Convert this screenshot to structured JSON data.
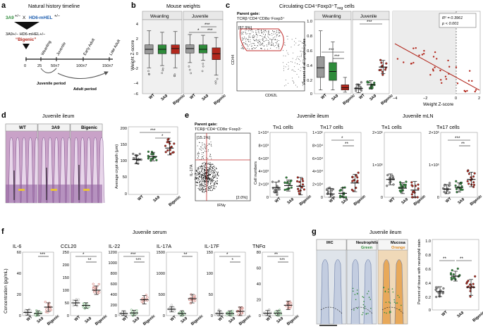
{
  "colors": {
    "wt": "#9a9a9a",
    "a39": "#2e8b3a",
    "big": "#b2281d",
    "he_bg": "#c9a2c8",
    "ihc_bg": "#dfe4ea"
  },
  "groups": [
    "WT",
    "3A9",
    "Bigenic"
  ],
  "panel_a": {
    "letter": "a",
    "title": "Natural history timeline",
    "cross_left": "3A9",
    "cross_left_sup": "+/−",
    "cross_x": "X",
    "cross_right": "HD6-mHEL",
    "cross_right_sup": "+/−",
    "offspring": "3A9+/− HD6-mHEL+/−",
    "bigenic_label": "“Bigenic”",
    "ticks": [
      "0",
      "25",
      "50±7",
      "100±7",
      "150±7"
    ],
    "stages": [
      "Weanling",
      "Juvenile",
      "Early Adult",
      "Late Adult"
    ],
    "juvenile_period": "Juvenile period",
    "adult_period": "Adult period"
  },
  "panel_b": {
    "letter": "b",
    "title": "Mouse weights",
    "ylabel": "Weight Z-score",
    "yticks": [
      "4",
      "2",
      "0",
      "−2",
      "−4",
      "−6"
    ],
    "subtitles": [
      "Weanling",
      "Juvenile"
    ],
    "sig": [
      "***",
      "*",
      "***"
    ]
  },
  "panel_c": {
    "letter": "c",
    "title": "Circulating CD4⁺Foxp3⁺T",
    "title_sub": "reg",
    "title_end": " cells",
    "gate_title": "Parent gate:",
    "gate": "TCRβ⁺CD4⁺CD8α⁻Foxp3⁺",
    "gate_pct": "[87.9%]",
    "x_axis": "CD62L",
    "y_axis": "CD44",
    "ylabel": "Percent of all lymphocytes",
    "yticks": [
      "1.0",
      "0.8",
      "0.6",
      "0.4",
      "0.2",
      "0"
    ],
    "subtitles": [
      "Weanling",
      "Juvenile"
    ],
    "sig": [
      "***",
      "***",
      "***"
    ],
    "r2": "R² = 0.3961",
    "p": "p < 0.001",
    "scatter_xlabel": "Weight Z-score",
    "scatter_xticks": [
      "−4",
      "−2",
      "0",
      "2"
    ]
  },
  "panel_d": {
    "letter": "d",
    "title": "Juvenile ileum",
    "ylabel": "Average crypt depth (μm)",
    "yticks": [
      "200",
      "150",
      "100",
      "50",
      "0"
    ],
    "sig": [
      "***",
      "*"
    ]
  },
  "panel_e": {
    "letter": "e",
    "gate_title": "Parent gate:",
    "gate": "TCRβ⁺CD4⁺CD8α⁻Foxp3⁻",
    "q1": "[15.1%]",
    "q2": "[2.0%]",
    "x_axis": "IFNγ",
    "y_axis": "IL-17A",
    "ileum_title": "Juvenile ileum",
    "mln_title": "Juvenile mLN",
    "th1": "Tʜ1 cells",
    "th17": "Tʜ17 cells",
    "ylabel": "Cell numbers",
    "th1_ileum_ticks": [
      "1×10⁴",
      "8×10³",
      "6×10³",
      "4×10³",
      "2×10³",
      "0"
    ],
    "th17_ileum_ticks": [
      "1×10⁵",
      "8×10⁴",
      "6×10⁴",
      "4×10⁴",
      "2×10⁴",
      "0"
    ],
    "mln_ticks": [
      "2×10⁵",
      "1×10⁵",
      "0"
    ],
    "sig_ileum": [
      "*",
      "**"
    ],
    "sig_mln": [
      "***",
      "**"
    ]
  },
  "panel_f": {
    "letter": "f",
    "title": "Juvenile serum",
    "ylabel": "Concentration (pg/mL)",
    "cytokines": [
      {
        "name": "IL-6",
        "ticks": [
          "60",
          "40",
          "20",
          "0"
        ],
        "sig": [
          "***"
        ]
      },
      {
        "name": "CCL20",
        "ticks": [
          "250",
          "200",
          "150",
          "100",
          "50",
          "0"
        ],
        "sig": [
          "*",
          "**"
        ]
      },
      {
        "name": "IL-22",
        "ticks": [
          "1200",
          "1000",
          "800",
          "600",
          "400",
          "200",
          "0"
        ],
        "sig": [
          "***",
          "***"
        ]
      },
      {
        "name": "IL-17A",
        "ticks": [
          "1500",
          "1000",
          "500",
          "0"
        ],
        "sig": [
          "**"
        ]
      },
      {
        "name": "IL-17F",
        "ticks": [
          "150",
          "100",
          "50",
          "0"
        ],
        "sig": [
          "*",
          "*"
        ]
      },
      {
        "name": "TNFα",
        "ticks": [
          "80",
          "60",
          "40",
          "20",
          "0"
        ],
        "sig": [
          "**",
          "***"
        ]
      }
    ]
  },
  "panel_g": {
    "letter": "g",
    "title": "Juvenile ileum",
    "tiles": [
      "IHC",
      "Neutrophils",
      "Mucosa"
    ],
    "tile_sub": [
      "",
      "Green",
      "Orange"
    ],
    "ylabel": "Percent of tissue with neutrophil stain",
    "yticks": [
      "1.0",
      "0.8",
      "0.6",
      "0.4",
      "0.2",
      "0"
    ],
    "sig": [
      "**",
      "**"
    ]
  },
  "chart_data": [
    {
      "id": "b_weanling",
      "type": "box",
      "title": "Mouse weights — Weanling",
      "categories": [
        "WT",
        "3A9",
        "Bigenic"
      ],
      "median": [
        0.0,
        0.0,
        0.1
      ],
      "q1": [
        -0.6,
        -0.6,
        -0.6
      ],
      "q3": [
        0.6,
        0.6,
        0.6
      ],
      "whisker_low": [
        -2.5,
        -2.2,
        -2.5
      ],
      "whisker_high": [
        2.5,
        2.3,
        2.4
      ],
      "ylabel": "Weight Z-score",
      "ylim": [
        -6,
        4
      ]
    },
    {
      "id": "b_juvenile",
      "type": "box",
      "title": "Mouse weights — Juvenile",
      "categories": [
        "WT",
        "3A9",
        "Bigenic"
      ],
      "median": [
        0.1,
        0.0,
        -0.6
      ],
      "q1": [
        -0.5,
        -0.5,
        -1.4
      ],
      "q3": [
        0.6,
        0.6,
        0.2
      ],
      "whisker_low": [
        -1.8,
        -1.5,
        -3.5
      ],
      "whisker_high": [
        2.0,
        1.9,
        1.6
      ],
      "ylabel": "Weight Z-score",
      "ylim": [
        -6,
        4
      ]
    },
    {
      "id": "c_weanling",
      "type": "box",
      "title": "Treg — Weanling",
      "categories": [
        "WT",
        "3A9",
        "Bigenic"
      ],
      "median": [
        0.35,
        0.3,
        0.08
      ],
      "q1": [
        0.22,
        0.18,
        0.05
      ],
      "q3": [
        0.5,
        0.42,
        0.12
      ],
      "whisker_low": [
        0.05,
        0.05,
        0.02
      ],
      "whisker_high": [
        0.85,
        0.7,
        0.22
      ],
      "ylabel": "Percent of all lymphocytes",
      "ylim": [
        0,
        1.0
      ]
    },
    {
      "id": "c_juvenile",
      "type": "scatter",
      "title": "Treg — Juvenile",
      "categories": [
        "WT",
        "3A9",
        "Bigenic"
      ],
      "mean": [
        0.07,
        0.12,
        0.36
      ],
      "ylim": [
        0,
        1.0
      ]
    },
    {
      "id": "c_corr",
      "type": "scatter",
      "title": "Treg vs weight",
      "xlabel": "Weight Z-score",
      "xlim": [
        -4,
        2
      ],
      "ylim": [
        0,
        1.0
      ],
      "r2": 0.3961
    },
    {
      "id": "d_crypt",
      "type": "scatter",
      "categories": [
        "WT",
        "3A9",
        "Bigenic"
      ],
      "mean": [
        103,
        112,
        137
      ],
      "ylabel": "Average crypt depth (μm)",
      "ylim": [
        0,
        200
      ]
    },
    {
      "id": "e_th1_ileum",
      "type": "scatter",
      "categories": [
        "WT",
        "3A9",
        "Bigenic"
      ],
      "mean": [
        1500,
        1800,
        1700
      ],
      "ylim": [
        0,
        10000
      ]
    },
    {
      "id": "e_th17_ileum",
      "type": "scatter",
      "categories": [
        "WT",
        "3A9",
        "Bigenic"
      ],
      "mean": [
        5000,
        6000,
        22000
      ],
      "ylim": [
        0,
        100000
      ]
    },
    {
      "id": "e_th1_mln",
      "type": "scatter",
      "categories": [
        "WT",
        "3A9",
        "Bigenic"
      ],
      "mean": [
        55000,
        28000,
        22000
      ],
      "ylim": [
        0,
        200000
      ]
    },
    {
      "id": "e_th17_mln",
      "type": "scatter",
      "categories": [
        "WT",
        "3A9",
        "Bigenic"
      ],
      "mean": [
        25000,
        30000,
        55000
      ],
      "ylim": [
        0,
        200000
      ]
    },
    {
      "id": "f_il6",
      "type": "scatter",
      "categories": [
        "WT",
        "3A9",
        "Bigenic"
      ],
      "mean": [
        3,
        2,
        8
      ],
      "ylim": [
        0,
        60
      ]
    },
    {
      "id": "f_ccl20",
      "type": "scatter",
      "categories": [
        "WT",
        "3A9",
        "Bigenic"
      ],
      "mean": [
        50,
        40,
        100
      ],
      "ylim": [
        0,
        250
      ]
    },
    {
      "id": "f_il22",
      "type": "scatter",
      "categories": [
        "WT",
        "3A9",
        "Bigenic"
      ],
      "mean": [
        40,
        50,
        300
      ],
      "ylim": [
        0,
        1200
      ]
    },
    {
      "id": "f_il17a",
      "type": "scatter",
      "categories": [
        "WT",
        "3A9",
        "Bigenic"
      ],
      "mean": [
        150,
        50,
        400
      ],
      "ylim": [
        0,
        1500
      ]
    },
    {
      "id": "f_il17f",
      "type": "scatter",
      "categories": [
        "WT",
        "3A9",
        "Bigenic"
      ],
      "mean": [
        5,
        5,
        10
      ],
      "ylim": [
        0,
        150
      ]
    },
    {
      "id": "f_tnfa",
      "type": "scatter",
      "categories": [
        "WT",
        "3A9",
        "Bigenic"
      ],
      "mean": [
        3,
        3,
        13
      ],
      "ylim": [
        0,
        80
      ]
    },
    {
      "id": "g_neutro",
      "type": "scatter",
      "categories": [
        "WT",
        "3A9",
        "Bigenic"
      ],
      "mean": [
        0.26,
        0.48,
        0.32
      ],
      "ylabel": "Percent of tissue with neutrophil stain",
      "ylim": [
        0,
        1.0
      ]
    }
  ]
}
